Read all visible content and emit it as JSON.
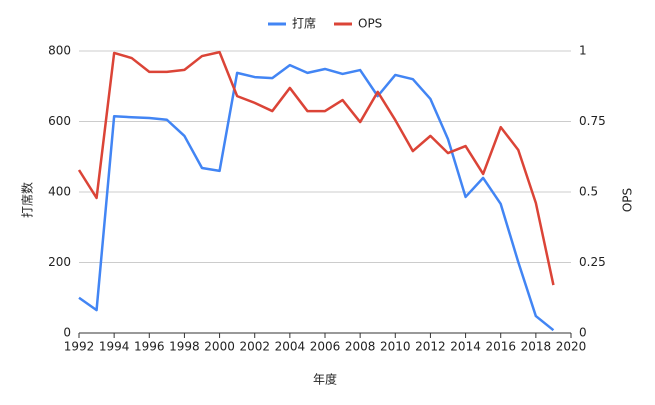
{
  "chart_data": {
    "type": "line",
    "x": [
      1992,
      1993,
      1994,
      1995,
      1996,
      1997,
      1998,
      1999,
      2000,
      2001,
      2002,
      2003,
      2004,
      2005,
      2006,
      2007,
      2008,
      2009,
      2010,
      2011,
      2012,
      2013,
      2014,
      2015,
      2016,
      2017,
      2018,
      2019
    ],
    "series": [
      {
        "name": "打席",
        "color": "#4285f4",
        "values": [
          100,
          65,
          615,
          612,
          610,
          605,
          559,
          468,
          460,
          738,
          726,
          723,
          760,
          738,
          749,
          735,
          746,
          672,
          732,
          720,
          664,
          550,
          386,
          440,
          366,
          201,
          48,
          8
        ]
      },
      {
        "name": "OPS",
        "color": "#db4437",
        "axis": "y2",
        "values": [
          0.578,
          0.479,
          0.993,
          0.975,
          0.926,
          0.926,
          0.933,
          0.982,
          0.996,
          0.84,
          0.816,
          0.787,
          0.869,
          0.787,
          0.787,
          0.826,
          0.748,
          0.855,
          0.755,
          0.645,
          0.699,
          0.638,
          0.663,
          0.564,
          0.73,
          0.649,
          0.461,
          0.17
        ]
      }
    ],
    "xlim": [
      1992,
      2020
    ],
    "xticks": [
      1992,
      1994,
      1996,
      1998,
      2000,
      2002,
      2004,
      2006,
      2008,
      2010,
      2012,
      2014,
      2016,
      2018,
      2020
    ],
    "ylim": [
      0,
      800
    ],
    "yticks": [
      0,
      200,
      400,
      600,
      800
    ],
    "y2lim": [
      0,
      1
    ],
    "y2ticks": [
      0,
      0.25,
      0.5,
      0.75,
      1
    ],
    "x_label": "年度",
    "y_label": "打席数",
    "y2_label": "OPS",
    "grid": true,
    "legend": "top"
  }
}
